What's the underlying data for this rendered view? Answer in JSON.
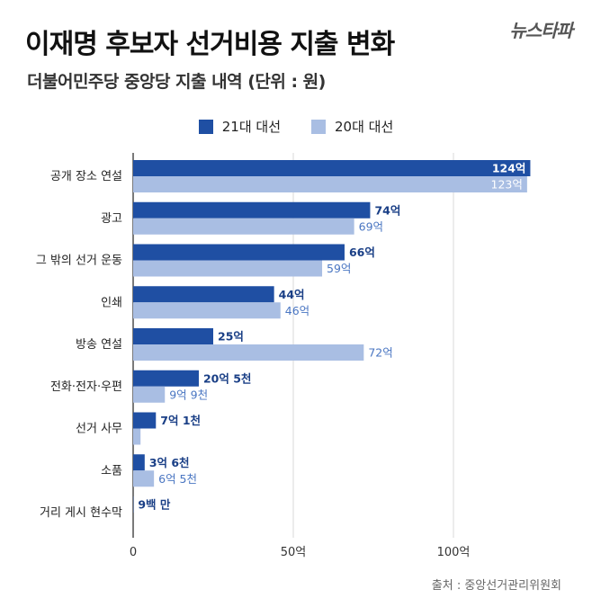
{
  "header": {
    "title": "이재명 후보자 선거비용 지출 변화",
    "subtitle": "더불어민주당 중앙당 지출 내역 (단위 : 원)",
    "logo": "뉴스타파"
  },
  "source": "출처 : 중앙선거관리위원회",
  "colors": {
    "series21": "#1f4fa3",
    "series20": "#a9bee3",
    "label20": "#4a76c2"
  },
  "chart_data": {
    "type": "bar",
    "orientation": "horizontal",
    "categories": [
      "공개 장소 연설",
      "광고",
      "그 밖의 선거 운동",
      "인쇄",
      "방송 연설",
      "전화·전자·우편",
      "선거 사무",
      "소품",
      "거리 게시 현수막"
    ],
    "series": [
      {
        "name": "21대 대선",
        "values": [
          124,
          74,
          66,
          44,
          25,
          20.5,
          7.1,
          3.6,
          0.09
        ],
        "labels": [
          "124억",
          "74억",
          "66억",
          "44억",
          "25억",
          "20억 5천",
          "7억 1천",
          "3억 6천",
          "9백 만"
        ]
      },
      {
        "name": "20대 대선",
        "values": [
          123,
          69,
          59,
          46,
          72,
          9.9,
          2.3,
          6.5,
          0
        ],
        "labels": [
          "123억",
          "69억",
          "59억",
          "46억",
          "72억",
          "9억 9천",
          "",
          "6억 5천",
          ""
        ]
      }
    ],
    "xticks": [
      0,
      50,
      100
    ],
    "xtick_labels": [
      "0",
      "50억",
      "100억"
    ],
    "xlim": [
      0,
      130
    ],
    "grid": true,
    "legend_position": "top-center"
  }
}
